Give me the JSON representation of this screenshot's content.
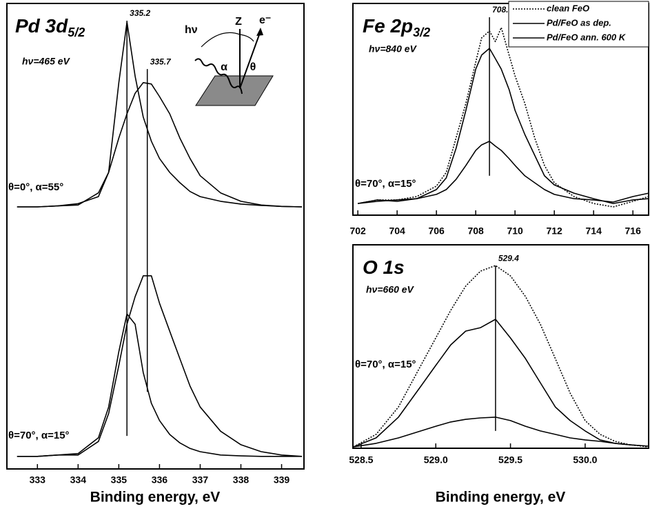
{
  "chart_data": [
    {
      "type": "line",
      "title": {
        "text": "Pd 3d",
        "subscript": "5/2"
      },
      "subtitle": "hν=465 eV",
      "xlabel": "Binding energy, eV",
      "annotations": [
        "θ=0°, α=55°",
        "θ=70°, α=15°"
      ],
      "inset_labels": [
        "hν",
        "Z",
        "e⁻",
        "α",
        "θ"
      ],
      "xlim": [
        332.25,
        339.55
      ],
      "ylim": [
        0,
        100
      ],
      "xticks": [
        333,
        334,
        335,
        336,
        337,
        338,
        339
      ],
      "x": [
        332.5,
        333.0,
        333.5,
        334.0,
        334.5,
        334.75,
        335.0,
        335.2,
        335.4,
        335.6,
        335.8,
        336.0,
        336.25,
        336.5,
        336.75,
        337.0,
        337.5,
        338.0,
        338.5,
        339.0,
        339.5
      ],
      "series": [
        {
          "color": "#000000",
          "style": "solid",
          "values": [
            56.3,
            56.3,
            56.5,
            57,
            58.5,
            63.7,
            83,
            96,
            84.4,
            75.6,
            70.4,
            66.7,
            63.7,
            61.5,
            59.6,
            58.5,
            57.5,
            56.9,
            56.6,
            56.4,
            56.3
          ]
        },
        {
          "color": "#000000",
          "style": "solid",
          "values": [
            56.3,
            56.3,
            56.5,
            56.7,
            59.3,
            63.7,
            71.1,
            76.3,
            80.7,
            83,
            82.7,
            80,
            76.3,
            71.1,
            66.7,
            63,
            59.3,
            57.5,
            56.7,
            56.4,
            56.3
          ]
        },
        {
          "color": "#000000",
          "style": "solid",
          "values": [
            2.7,
            2.7,
            3,
            3,
            5.9,
            11.9,
            22.2,
            31.1,
            37,
            41.5,
            41.5,
            35.6,
            29.6,
            23.7,
            17.8,
            13.3,
            8.1,
            5.2,
            3.7,
            3,
            2.7
          ]
        },
        {
          "color": "#000000",
          "style": "solid",
          "values": [
            2.7,
            2.7,
            3,
            3.3,
            6.7,
            13.3,
            25.2,
            33.3,
            31.1,
            20.7,
            14.1,
            10.4,
            7.4,
            5.6,
            4.4,
            3.7,
            3,
            2.8,
            2.7,
            2.7,
            2.7
          ]
        }
      ],
      "peak_lines": [
        {
          "x": 335.2,
          "y": [
            7.1,
            96.3
          ]
        },
        {
          "x": 335.7,
          "y": [
            16.6,
            85.9
          ]
        }
      ]
    },
    {
      "type": "line",
      "title": {
        "text": "Fe 2p",
        "subscript": "3/2"
      },
      "subtitle": "hν=840 eV",
      "annotations": [
        "θ=70°, α=15°"
      ],
      "legend": "upper right",
      "xlim": [
        701.75,
        716.8
      ],
      "ylim": [
        0,
        100
      ],
      "xticks": [
        702,
        704,
        706,
        708,
        710,
        712,
        714,
        716
      ],
      "x": [
        702,
        703,
        704,
        705,
        706,
        706.5,
        707,
        707.5,
        708,
        708.3,
        708.7,
        709,
        709.3,
        709.7,
        710,
        710.5,
        711,
        711.5,
        712,
        713,
        714,
        715,
        716,
        716.8
      ],
      "series": [
        {
          "name": "clean FeO",
          "color": "#000000",
          "style": "dotted",
          "values": [
            5.5,
            7.2,
            7.2,
            8.8,
            13.7,
            20.2,
            36.5,
            52.8,
            72.3,
            83.7,
            87,
            82,
            88.6,
            75.6,
            65.8,
            52.8,
            36.5,
            23.5,
            15.3,
            8.8,
            5.5,
            3.9,
            6.5,
            8.8
          ]
        },
        {
          "name": "Pd/FeO as dep.",
          "color": "#000000",
          "style": "solid",
          "values": [
            5.5,
            6.5,
            7.2,
            7.8,
            12.1,
            17.6,
            31.6,
            49.5,
            69,
            75.6,
            78.8,
            73.9,
            69,
            59.3,
            49.5,
            38.1,
            28.3,
            18.6,
            14.3,
            10.4,
            7.8,
            5.5,
            7.2,
            7.8
          ]
        },
        {
          "name": "Pd/FeO ann. 600 K",
          "color": "#000000",
          "style": "solid",
          "values": [
            5.5,
            7.2,
            6.5,
            7.8,
            9.8,
            12.1,
            16.9,
            23.5,
            30.6,
            33.2,
            34.9,
            32.6,
            30.6,
            26.7,
            23.5,
            18.6,
            15.3,
            12.1,
            9.8,
            7.8,
            7.2,
            6.2,
            8.8,
            10.4
          ]
        }
      ],
      "peak_lines": [
        {
          "x": 708.7,
          "y": [
            18.6,
            93.5
          ]
        }
      ]
    },
    {
      "type": "line",
      "title": {
        "text": "O 1s"
      },
      "subtitle": "hν=660 eV",
      "xlabel": "Binding energy, eV",
      "annotations": [
        "θ=70°, α=15°"
      ],
      "xlim": [
        528.445,
        530.425
      ],
      "ylim": [
        0,
        100
      ],
      "xticks": [
        528.5,
        {
          "value": 529,
          "label": "529.0"
        },
        529.5,
        {
          "value": 530,
          "label": "530.0"
        }
      ],
      "x": [
        528.45,
        528.6,
        528.75,
        528.9,
        529.0,
        529.1,
        529.2,
        529.3,
        529.4,
        529.5,
        529.6,
        529.7,
        529.8,
        529.9,
        530.0,
        530.1,
        530.2,
        530.3,
        530.42
      ],
      "series": [
        {
          "color": "#000000",
          "style": "dotted",
          "values": [
            0.7,
            6.8,
            20.3,
            40.7,
            54.2,
            67.8,
            79.7,
            87.1,
            89.8,
            84.7,
            74.6,
            61,
            44.1,
            27.1,
            13.6,
            6.8,
            3.4,
            1.7,
            0.7
          ]
        },
        {
          "color": "#000000",
          "style": "solid",
          "values": [
            0.7,
            5.1,
            15.3,
            30.5,
            40.7,
            50.8,
            57.6,
            59.3,
            63.4,
            54.2,
            44.1,
            32.2,
            20.3,
            13.6,
            8.5,
            4.1,
            2.4,
            1.7,
            1.0
          ]
        },
        {
          "color": "#000000",
          "style": "solid",
          "values": [
            0.7,
            2.4,
            5.1,
            8.5,
            10.8,
            12.9,
            14.2,
            14.9,
            15.3,
            13.6,
            10.8,
            8.5,
            6.8,
            5.1,
            4.1,
            3.4,
            2.4,
            1.7,
            1.0
          ]
        }
      ],
      "peak_lines": [
        {
          "x": 529.4,
          "y": [
            8.5,
            89.8
          ]
        }
      ]
    }
  ]
}
